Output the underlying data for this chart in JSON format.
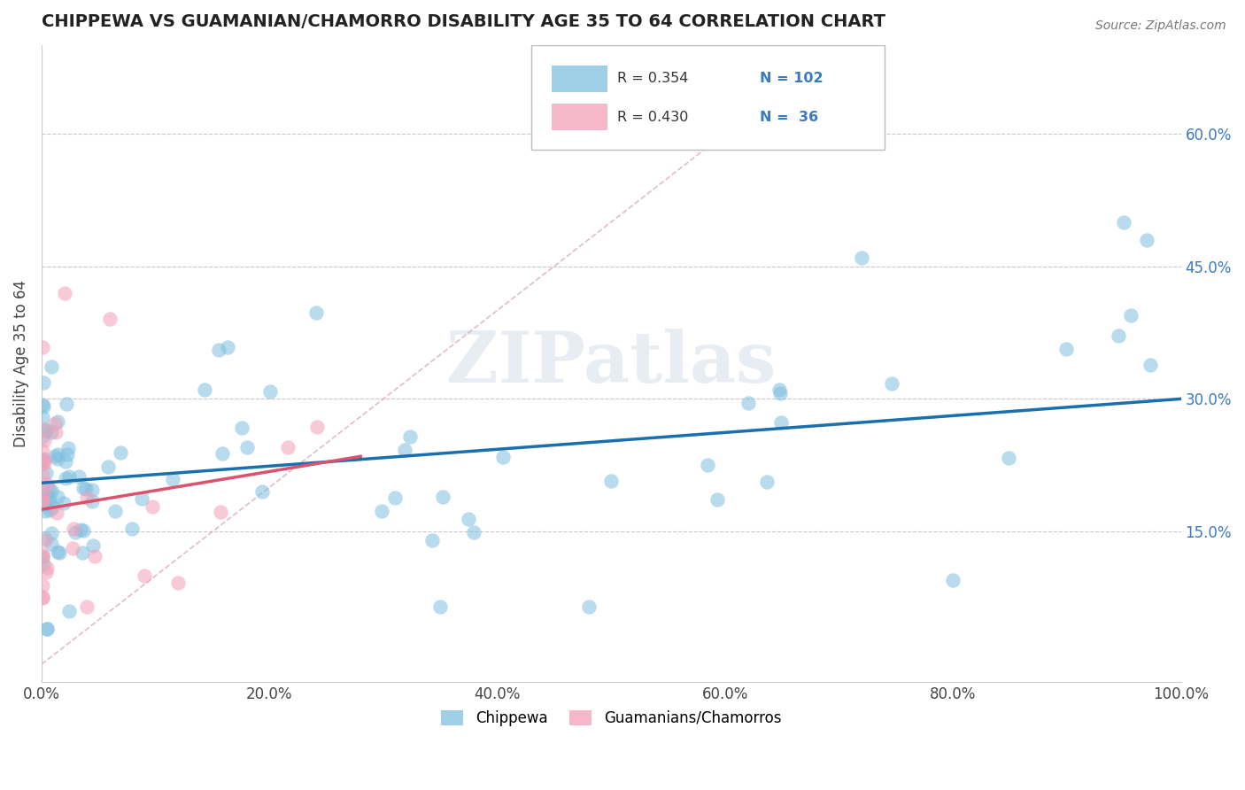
{
  "title": "CHIPPEWA VS GUAMANIAN/CHAMORRO DISABILITY AGE 35 TO 64 CORRELATION CHART",
  "source": "Source: ZipAtlas.com",
  "ylabel": "Disability Age 35 to 64",
  "xlim": [
    0.0,
    1.0
  ],
  "ylim": [
    -0.02,
    0.7
  ],
  "xticks": [
    0.0,
    0.2,
    0.4,
    0.6,
    0.8,
    1.0
  ],
  "xticklabels": [
    "0.0%",
    "20.0%",
    "40.0%",
    "60.0%",
    "80.0%",
    "100.0%"
  ],
  "yticks": [
    0.15,
    0.3,
    0.45,
    0.6
  ],
  "yticklabels": [
    "15.0%",
    "30.0%",
    "45.0%",
    "60.0%"
  ],
  "chippewa_color": "#7fbfdf",
  "guamanian_color": "#f4a0b8",
  "chippewa_line_color": "#1a6faf",
  "guamanian_line_color": "#d9536e",
  "R_chippewa": 0.354,
  "N_chippewa": 102,
  "R_guamanian": 0.43,
  "N_guamanian": 36,
  "legend_label_1": "Chippewa",
  "legend_label_2": "Guamanians/Chamorros",
  "watermark": "ZIPatlas",
  "chippewa_trend_x0": 0.0,
  "chippewa_trend_y0": 0.205,
  "chippewa_trend_x1": 1.0,
  "chippewa_trend_y1": 0.3,
  "guamanian_trend_x0": 0.0,
  "guamanian_trend_y0": 0.175,
  "guamanian_trend_x1": 0.28,
  "guamanian_trend_y1": 0.235,
  "ref_line_x0": 0.0,
  "ref_line_y0": 0.0,
  "ref_line_x1": 0.68,
  "ref_line_y1": 0.68
}
